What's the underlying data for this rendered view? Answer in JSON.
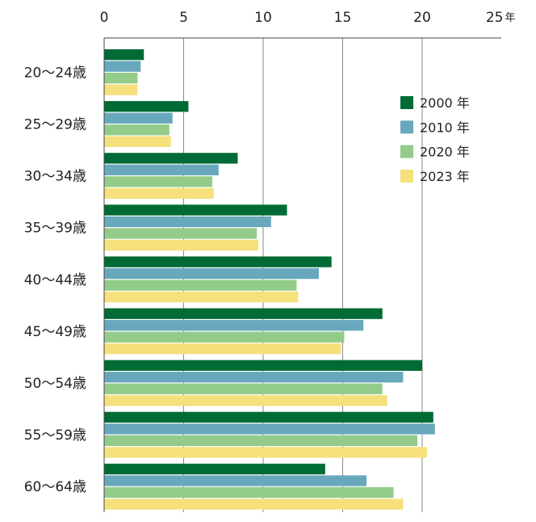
{
  "chart_data": {
    "type": "bar",
    "orientation": "horizontal",
    "title": "",
    "xlabel": "",
    "ylabel": "",
    "x_unit": "年",
    "xlim": [
      0,
      25
    ],
    "x_ticks": [
      "0",
      "5",
      "10",
      "15",
      "20",
      "25"
    ],
    "grid": true,
    "legend_position": "right",
    "categories": [
      "20〜24歳",
      "25〜29歳",
      "30〜34歳",
      "35〜39歳",
      "40〜44歳",
      "45〜49歳",
      "50〜54歳",
      "55〜59歳",
      "60〜64歳"
    ],
    "series": [
      {
        "name": "2000 年",
        "color": "#006b35",
        "values": [
          2.5,
          5.3,
          8.4,
          11.5,
          14.3,
          17.5,
          20.0,
          20.7,
          13.9
        ]
      },
      {
        "name": "2010 年",
        "color": "#68a8bc",
        "values": [
          2.3,
          4.3,
          7.2,
          10.5,
          13.5,
          16.3,
          18.8,
          20.8,
          16.5
        ]
      },
      {
        "name": "2020 年",
        "color": "#93cb89",
        "values": [
          2.1,
          4.1,
          6.8,
          9.6,
          12.1,
          15.1,
          17.5,
          19.7,
          18.2
        ]
      },
      {
        "name": "2023 年",
        "color": "#f5e07c",
        "values": [
          2.1,
          4.2,
          6.9,
          9.7,
          12.2,
          14.9,
          17.8,
          20.3,
          18.8
        ]
      }
    ]
  }
}
